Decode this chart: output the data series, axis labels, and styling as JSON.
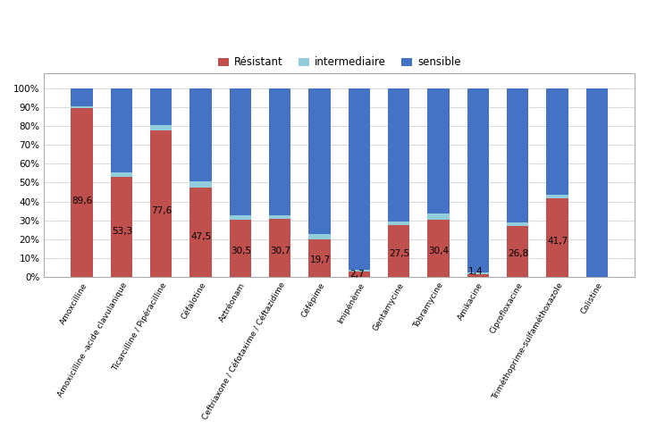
{
  "categories": [
    "Amoxcilline",
    "Amoxicilline -acide clavulanique",
    "Ticarcilline / Pipéracilline",
    "Céfalotine",
    "Aztréonam",
    "Ceftriaxone / Céfotaxime / Céftazidime",
    "Céfépime",
    "Imipénème",
    "Gentamycine",
    "Tobramycine",
    "Amikacine",
    "Ciprofloxacine",
    "Triméthoprime-sulfaméthoxazole",
    "Colistine"
  ],
  "resistant": [
    89.6,
    53.3,
    77.6,
    47.5,
    30.5,
    30.7,
    19.7,
    2.7,
    27.5,
    30.4,
    1.4,
    26.8,
    41.7,
    0.0
  ],
  "intermediaire": [
    1.0,
    2.0,
    3.0,
    3.0,
    2.0,
    2.0,
    3.0,
    1.0,
    2.0,
    3.0,
    1.0,
    2.0,
    2.0,
    0.0
  ],
  "sensible": [
    9.4,
    44.7,
    19.4,
    49.5,
    67.5,
    67.3,
    77.3,
    96.3,
    70.5,
    66.6,
    97.6,
    71.2,
    56.3,
    100.0
  ],
  "resistant_label_values": [
    "89,6",
    "53,3",
    "77,6",
    "47,5",
    "30,5",
    "30,7",
    "19,7",
    "2,7",
    "27,5",
    "30,4",
    "1,4",
    "26,8",
    "41,7",
    null
  ],
  "color_resistant": "#C0504D",
  "color_intermediaire": "#92CDDC",
  "color_sensible": "#4472C4",
  "legend_labels": [
    "Résistant",
    "intermediaire",
    "sensible"
  ],
  "bar_width": 0.55,
  "background_color": "#FFFFFF",
  "grid_color": "#D9D9D9",
  "font_size_tick_x": 6.5,
  "font_size_tick_y": 7.5,
  "font_size_label": 7.5,
  "border_color": "#AAAAAA"
}
